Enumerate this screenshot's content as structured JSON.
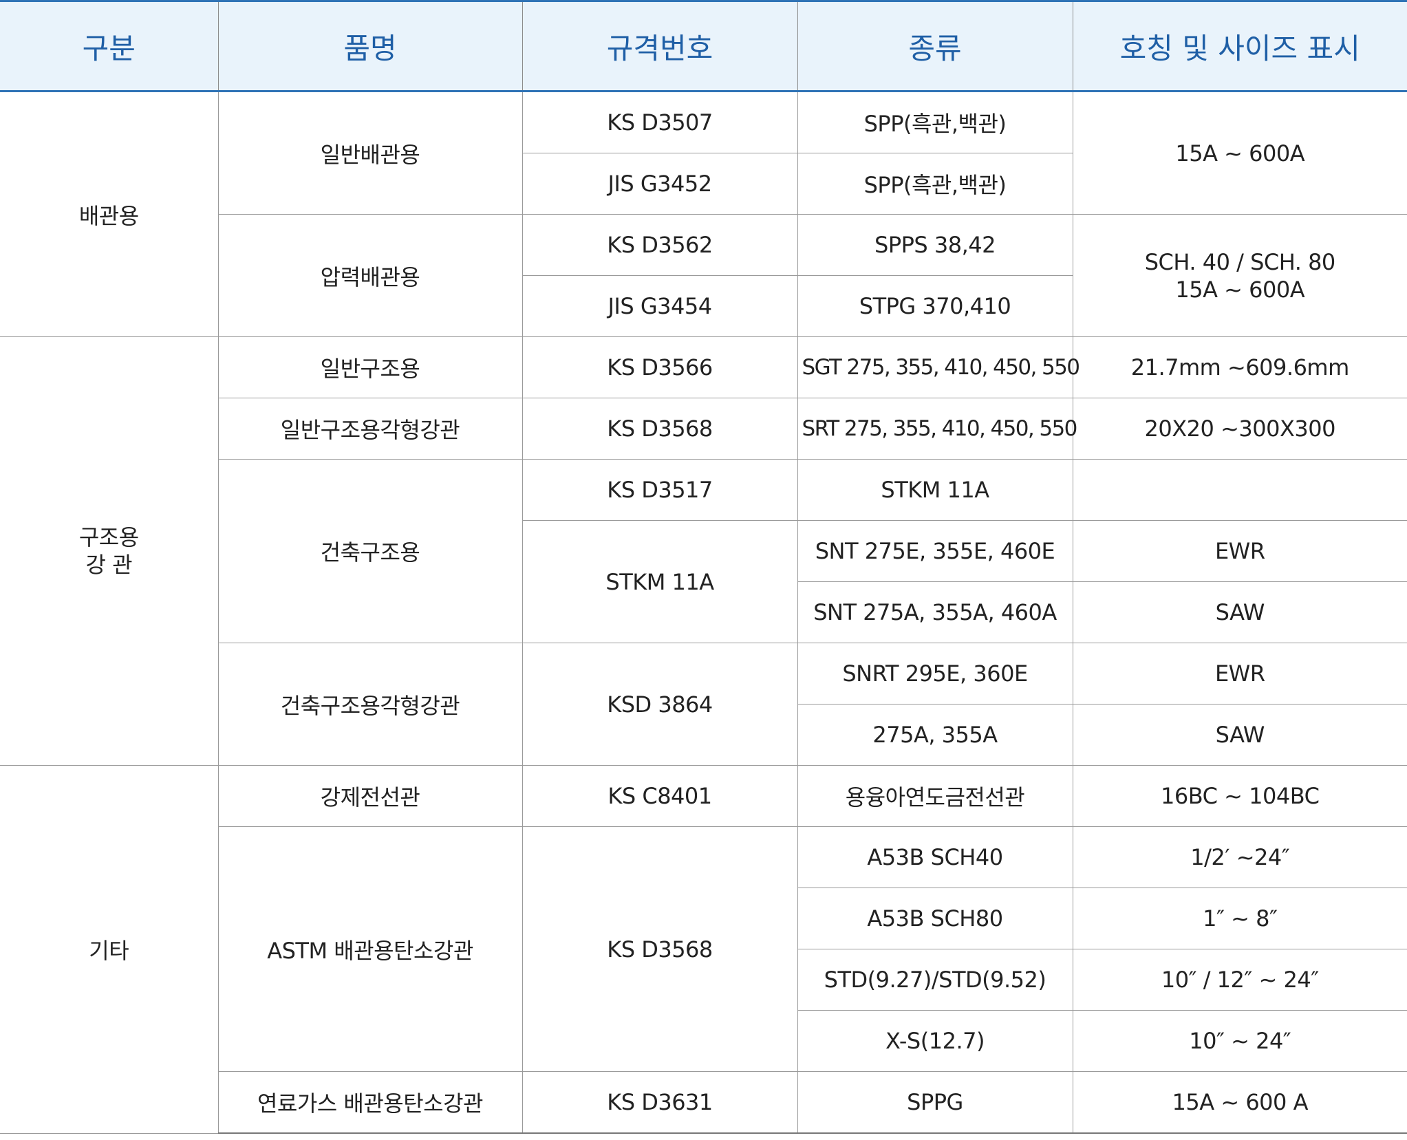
{
  "headers": {
    "category": "구분",
    "item": "품명",
    "standard": "규격번호",
    "kind": "종류",
    "size": "호칭 및 사이즈 표시"
  },
  "groups": {
    "piping": "배관용",
    "structural_line1": "구조용",
    "structural_line2": "강 관",
    "other": "기타"
  },
  "rows": {
    "general_piping": {
      "item": "일반배관용",
      "std1": "KS D3507",
      "kind1": "SPP(흑관,백관)",
      "std2": "JIS G3452",
      "kind2": "SPP(흑관,백관)",
      "size": "15A ~ 600A"
    },
    "pressure_piping": {
      "item": "압력배관용",
      "std1": "KS D3562",
      "kind1": "SPPS 38,42",
      "std2": "JIS G3454",
      "kind2": "STPG 370,410",
      "size_line1": "SCH. 40 / SCH. 80",
      "size_line2": "15A ~ 600A"
    },
    "general_structural": {
      "item": "일반구조용",
      "std": "KS D3566",
      "kind": "SGT 275, 355, 410, 450, 550",
      "size": "21.7mm ~609.6mm"
    },
    "general_structural_square": {
      "item": "일반구조용각형강관",
      "std": "KS D3568",
      "kind": "SRT 275, 355, 410, 450, 550",
      "size": "20X20 ~300X300"
    },
    "building_structural": {
      "item": "건축구조용",
      "std1": "KS D3517",
      "kind1": "STKM 11A",
      "size1": "",
      "std2": "STKM 11A",
      "kind2": "SNT 275E, 355E, 460E",
      "size2": "EWR",
      "kind3": "SNT 275A, 355A, 460A",
      "size3": "SAW"
    },
    "building_structural_square": {
      "item": "건축구조용각형강관",
      "std": "KSD 3864",
      "kind1": "SNRT 295E, 360E",
      "size1": "EWR",
      "kind2": "275A, 355A",
      "size2": "SAW"
    },
    "conduit": {
      "item": "강제전선관",
      "std": "KS C8401",
      "kind": "용융아연도금전선관",
      "size": "16BC ~ 104BC"
    },
    "astm": {
      "item": "ASTM 배관용탄소강관",
      "std": "KS D3568",
      "kind1": "A53B SCH40",
      "size1": "1/2′ ~24″",
      "kind2": "A53B SCH80",
      "size2": "1″ ~ 8″",
      "kind3": "STD(9.27)/STD(9.52)",
      "size3": "10″ / 12″ ~ 24″",
      "kind4": "X-S(12.7)",
      "size4": "10″ ~ 24″"
    },
    "fuel_gas": {
      "item": "연료가스 배관용탄소강관",
      "std": "KS D3631",
      "kind": "SPPG",
      "size": "15A ~ 600 A"
    }
  }
}
